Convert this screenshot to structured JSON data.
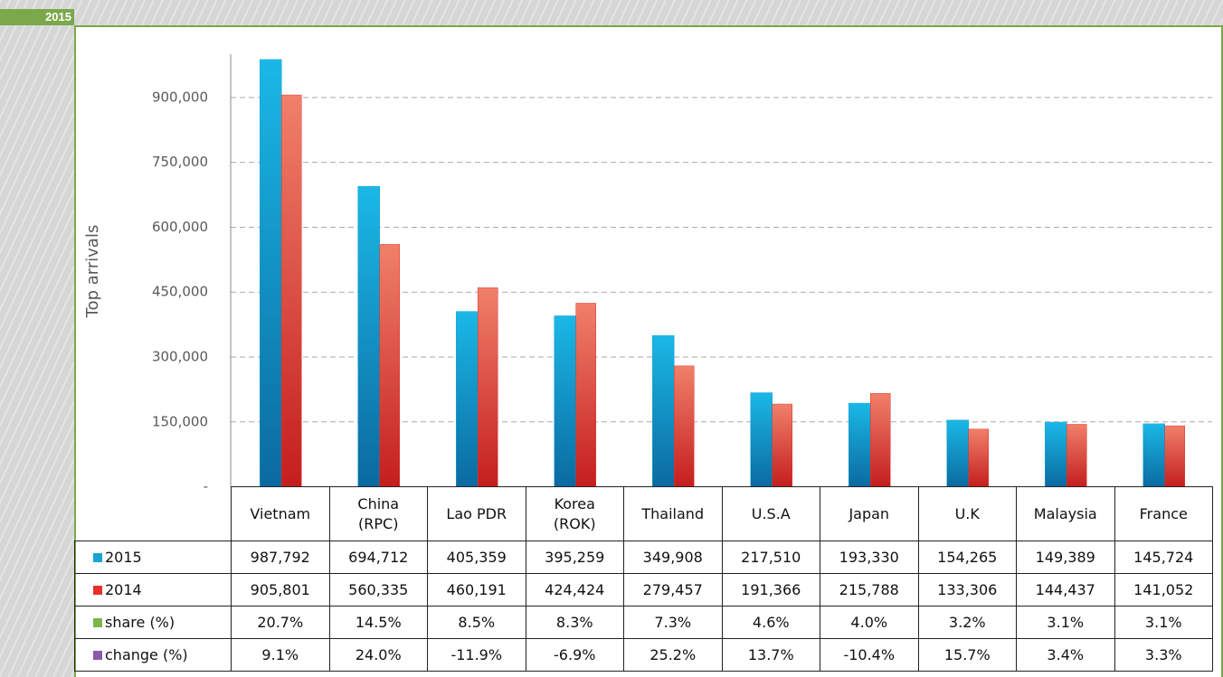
{
  "chart_data": {
    "type": "bar",
    "badge": "2015",
    "ylabel": "Top arrivals",
    "categories": [
      "Vietnam",
      "China\n(RPC)",
      "Lao PDR",
      "Korea\n(ROK)",
      "Thailand",
      "U.S.A",
      "Japan",
      "U.K",
      "Malaysia",
      "France"
    ],
    "ylim": [
      0,
      1000000
    ],
    "yticks": [
      {
        "value": 0,
        "label": "-"
      },
      {
        "value": 150000,
        "label": "150,000"
      },
      {
        "value": 300000,
        "label": "300,000"
      },
      {
        "value": 450000,
        "label": "450,000"
      },
      {
        "value": 600000,
        "label": "600,000"
      },
      {
        "value": 750000,
        "label": "750,000"
      },
      {
        "value": 900000,
        "label": "900,000"
      }
    ],
    "grid": true,
    "series": [
      {
        "name": "2015",
        "color": "#1aa3d6",
        "values": [
          987792,
          694712,
          405359,
          395259,
          349908,
          217510,
          193330,
          154265,
          149389,
          145724
        ],
        "value_labels": [
          "987,792",
          "694,712",
          "405,359",
          "395,259",
          "349,908",
          "217,510",
          "193,330",
          "154,265",
          "149,389",
          "145,724"
        ]
      },
      {
        "name": "2014",
        "color": "#e8302c",
        "values": [
          905801,
          560335,
          460191,
          424424,
          279457,
          191366,
          215788,
          133306,
          144437,
          141052
        ],
        "value_labels": [
          "905,801",
          "560,335",
          "460,191",
          "424,424",
          "279,457",
          "191,366",
          "215,788",
          "133,306",
          "144,437",
          "141,052"
        ]
      }
    ],
    "table_rows": [
      {
        "name": "share (%)",
        "color": "#7ab648",
        "values": [
          20.7,
          14.5,
          8.5,
          8.3,
          7.3,
          4.6,
          4.0,
          3.2,
          3.1,
          3.1
        ],
        "value_labels": [
          "20.7%",
          "14.5%",
          "8.5%",
          "8.3%",
          "7.3%",
          "4.6%",
          "4.0%",
          "3.2%",
          "3.1%",
          "3.1%"
        ]
      },
      {
        "name": "change (%)",
        "color": "#8a5aa8",
        "values": [
          9.1,
          24.0,
          -11.9,
          -6.9,
          25.2,
          13.7,
          -10.4,
          15.7,
          3.4,
          3.3
        ],
        "value_labels": [
          "9.1%",
          "24.0%",
          "-11.9%",
          "-6.9%",
          "25.2%",
          "13.7%",
          "-10.4%",
          "15.7%",
          "3.4%",
          "3.3%"
        ]
      }
    ]
  }
}
